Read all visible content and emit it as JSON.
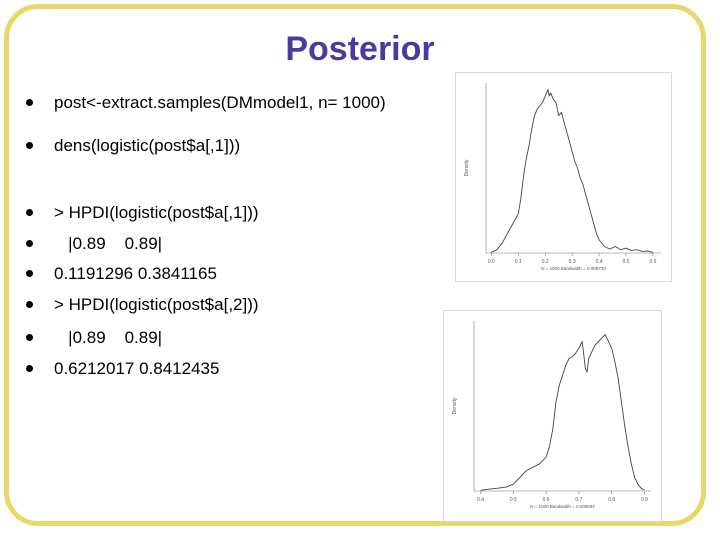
{
  "slide": {
    "title": "Posterior",
    "bullets": [
      "post<-extract.samples(DMmodel1, n= 1000)",
      "dens(logistic(post$a[,1]))",
      "> HPDI(logistic(post$a[,1]))",
      "   |0.89    0.89|",
      "0.1191296 0.3841165",
      "> HPDI(logistic(post$a[,2]))",
      "   |0.89    0.89|",
      "0.6212017 0.8412435"
    ]
  },
  "chart_data": [
    {
      "type": "line",
      "ylabel": "Density",
      "xlabel": "N = 1000   Bandwidth = 0.009733",
      "x_ticks": [
        "0.0",
        "0.1",
        "0.2",
        "0.3",
        "0.4",
        "0.5",
        "0.6"
      ],
      "xlim": [
        -0.02,
        0.63
      ],
      "ylim": [
        0,
        5.2
      ],
      "x": [
        0.0,
        0.02,
        0.04,
        0.06,
        0.08,
        0.1,
        0.11,
        0.12,
        0.13,
        0.14,
        0.15,
        0.16,
        0.17,
        0.18,
        0.19,
        0.2,
        0.21,
        0.215,
        0.22,
        0.23,
        0.24,
        0.25,
        0.26,
        0.27,
        0.28,
        0.29,
        0.3,
        0.31,
        0.32,
        0.33,
        0.34,
        0.35,
        0.36,
        0.37,
        0.38,
        0.39,
        0.4,
        0.42,
        0.44,
        0.46,
        0.48,
        0.5,
        0.52,
        0.54,
        0.56,
        0.58,
        0.6
      ],
      "y": [
        0.02,
        0.1,
        0.3,
        0.6,
        0.9,
        1.2,
        1.7,
        2.4,
        2.9,
        3.3,
        3.8,
        4.2,
        4.4,
        4.5,
        4.6,
        4.8,
        5.0,
        4.8,
        4.9,
        4.7,
        4.6,
        4.2,
        4.3,
        4.0,
        3.7,
        3.4,
        3.1,
        2.8,
        2.6,
        2.3,
        2.1,
        1.8,
        1.5,
        1.2,
        0.9,
        0.6,
        0.4,
        0.2,
        0.12,
        0.2,
        0.1,
        0.15,
        0.08,
        0.1,
        0.05,
        0.06,
        0.02
      ]
    },
    {
      "type": "line",
      "ylabel": "Density",
      "xlabel": "N = 1000   Bandwidth = 0.008684",
      "x_ticks": [
        "0.4",
        "0.5",
        "0.6",
        "0.7",
        "0.8",
        "0.9"
      ],
      "xlim": [
        0.38,
        0.92
      ],
      "ylim": [
        0,
        5.0
      ],
      "x": [
        0.4,
        0.42,
        0.45,
        0.48,
        0.5,
        0.52,
        0.54,
        0.56,
        0.58,
        0.6,
        0.61,
        0.62,
        0.63,
        0.64,
        0.65,
        0.66,
        0.67,
        0.68,
        0.69,
        0.7,
        0.71,
        0.72,
        0.725,
        0.73,
        0.74,
        0.75,
        0.76,
        0.77,
        0.78,
        0.79,
        0.8,
        0.81,
        0.82,
        0.83,
        0.84,
        0.85,
        0.86,
        0.87,
        0.88,
        0.89,
        0.9
      ],
      "y": [
        0.02,
        0.05,
        0.08,
        0.12,
        0.2,
        0.4,
        0.6,
        0.7,
        0.8,
        1.0,
        1.3,
        1.8,
        2.6,
        3.1,
        3.4,
        3.7,
        3.9,
        3.95,
        4.05,
        4.2,
        4.4,
        3.6,
        3.5,
        3.9,
        4.1,
        4.3,
        4.4,
        4.5,
        4.6,
        4.4,
        4.2,
        3.8,
        3.3,
        2.6,
        1.9,
        1.3,
        0.8,
        0.4,
        0.2,
        0.08,
        0.03
      ]
    }
  ]
}
